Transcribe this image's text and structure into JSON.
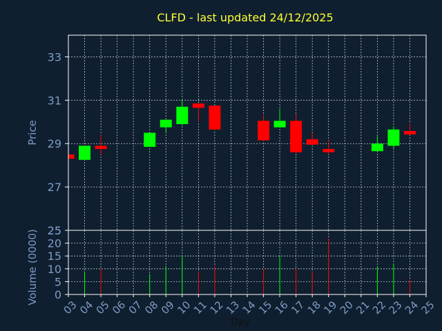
{
  "title": "CLFD - last updated 24/12/2025",
  "colors": {
    "background": "#0f1f30",
    "title": "#ffff33",
    "axis_label": "#7e9bc3",
    "tick_label": "#7e9bc3",
    "frame": "#ffffff",
    "grid": "#ffffff",
    "up": "#00ff00",
    "down": "#ff0000"
  },
  "chart_data": [
    {
      "type": "candlestick",
      "panel": "price",
      "ylabel": "Price",
      "ylim": [
        25,
        34
      ],
      "yticks": [
        25,
        27,
        29,
        31,
        33
      ],
      "grid": true,
      "candles": [
        {
          "day": 3,
          "open": 28.5,
          "high": 28.5,
          "low": 28.3,
          "close": 28.3
        },
        {
          "day": 4,
          "open": 28.25,
          "high": 28.9,
          "low": 28.25,
          "close": 28.9
        },
        {
          "day": 5,
          "open": 28.9,
          "high": 29.4,
          "low": 28.5,
          "close": 28.75
        },
        {
          "day": 8,
          "open": 28.85,
          "high": 29.5,
          "low": 28.85,
          "close": 29.5
        },
        {
          "day": 9,
          "open": 29.75,
          "high": 30.1,
          "low": 29.5,
          "close": 30.1
        },
        {
          "day": 10,
          "open": 29.9,
          "high": 31.0,
          "low": 29.85,
          "close": 30.7
        },
        {
          "day": 11,
          "open": 30.85,
          "high": 30.85,
          "low": 30.0,
          "close": 30.65
        },
        {
          "day": 12,
          "open": 30.75,
          "high": 30.75,
          "low": 29.6,
          "close": 29.65
        },
        {
          "day": 15,
          "open": 30.05,
          "high": 30.3,
          "low": 29.1,
          "close": 29.15
        },
        {
          "day": 16,
          "open": 29.75,
          "high": 30.6,
          "low": 29.75,
          "close": 30.05
        },
        {
          "day": 17,
          "open": 30.05,
          "high": 30.35,
          "low": 28.55,
          "close": 28.6
        },
        {
          "day": 18,
          "open": 29.2,
          "high": 29.5,
          "low": 28.95,
          "close": 28.95
        },
        {
          "day": 19,
          "open": 28.75,
          "high": 29.15,
          "low": 28.5,
          "close": 28.6
        },
        {
          "day": 22,
          "open": 28.65,
          "high": 29.35,
          "low": 28.65,
          "close": 29.0
        },
        {
          "day": 23,
          "open": 28.9,
          "high": 29.8,
          "low": 28.75,
          "close": 29.65
        },
        {
          "day": 24,
          "open": 29.55,
          "high": 29.95,
          "low": 29.4,
          "close": 29.45
        }
      ]
    },
    {
      "type": "bar",
      "panel": "volume",
      "ylabel": "Volume (0000)",
      "ylim": [
        0,
        25
      ],
      "yticks": [
        0,
        5,
        10,
        15,
        20,
        25
      ],
      "xlabel": "Day",
      "xlim": [
        3,
        25
      ],
      "xticks": [
        "03",
        "04",
        "05",
        "06",
        "07",
        "08",
        "09",
        "10",
        "11",
        "12",
        "13",
        "14",
        "15",
        "16",
        "17",
        "18",
        "19",
        "20",
        "21",
        "22",
        "23",
        "24",
        "25"
      ],
      "grid": true,
      "bars": [
        {
          "day": 4,
          "value": 9,
          "dir": "up"
        },
        {
          "day": 5,
          "value": 10,
          "dir": "down"
        },
        {
          "day": 8,
          "value": 8,
          "dir": "up"
        },
        {
          "day": 9,
          "value": 11,
          "dir": "up"
        },
        {
          "day": 10,
          "value": 15,
          "dir": "up"
        },
        {
          "day": 11,
          "value": 9,
          "dir": "down"
        },
        {
          "day": 12,
          "value": 11,
          "dir": "down"
        },
        {
          "day": 15,
          "value": 10,
          "dir": "down"
        },
        {
          "day": 16,
          "value": 15,
          "dir": "up"
        },
        {
          "day": 17,
          "value": 10,
          "dir": "down"
        },
        {
          "day": 18,
          "value": 9,
          "dir": "down"
        },
        {
          "day": 19,
          "value": 22,
          "dir": "down"
        },
        {
          "day": 22,
          "value": 11,
          "dir": "up"
        },
        {
          "day": 23,
          "value": 12,
          "dir": "up"
        },
        {
          "day": 24,
          "value": 6,
          "dir": "down"
        }
      ]
    }
  ]
}
